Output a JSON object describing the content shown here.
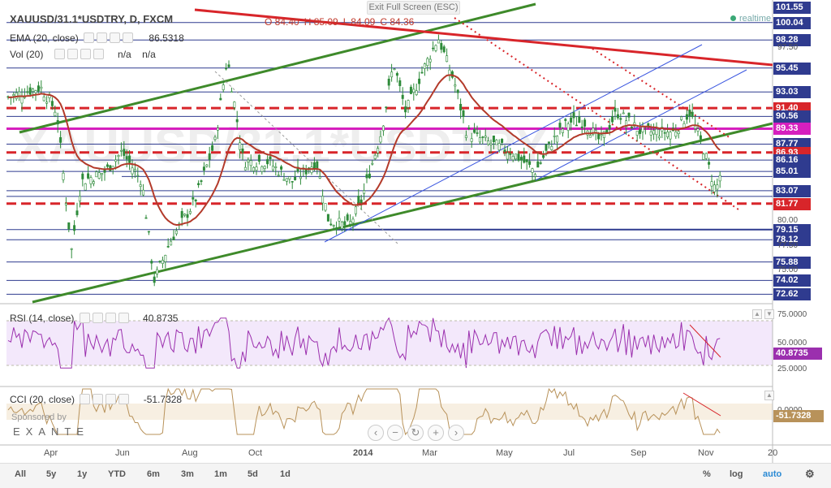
{
  "toolbar": {
    "exit_fullscreen": "Exit Full Screen (ESC)",
    "realtime": "realtime"
  },
  "main_pane": {
    "symbol": "XAUUSD/31.1*USDTRY, D, FXCM",
    "ohlc": {
      "o": "O 84.40",
      "h": "H 85.09",
      "l": "L 84.09",
      "c": "C 84.36"
    },
    "ema_label": "EMA (20, close)",
    "ema_value": "86.5318",
    "vol_label": "Vol (20)",
    "vol_value_1": "n/a",
    "vol_value_2": "n/a",
    "watermark": "XAUUSD/31.1*USDTRY"
  },
  "rsi_pane": {
    "label": "RSI (14, close)",
    "value": "40.8735"
  },
  "cci_pane": {
    "label": "CCI (20, close)",
    "value": "-51.7328",
    "sponsored": "Sponsored by",
    "sponsor_name": "EXANTE"
  },
  "price_tags": [
    {
      "text": "101.55",
      "color": "#2f3b8f",
      "y": 101.55
    },
    {
      "text": "100.04",
      "color": "#2f3b8f",
      "y": 100.04
    },
    {
      "text": "98.28",
      "color": "#2f3b8f",
      "y": 98.28
    },
    {
      "text": "95.45",
      "color": "#2f3b8f",
      "y": 95.45
    },
    {
      "text": "93.03",
      "color": "#2f3b8f",
      "y": 93.03
    },
    {
      "text": "91.40",
      "color": "#d8252a",
      "y": 91.4
    },
    {
      "text": "90.56",
      "color": "#2f3b8f",
      "y": 90.56
    },
    {
      "text": "89.33",
      "color": "#d61fbe",
      "y": 89.33
    },
    {
      "text": "87.77",
      "color": "#2f3b8f",
      "y": 87.77
    },
    {
      "text": "86.93",
      "color": "#d8252a",
      "y": 86.93
    },
    {
      "text": "86.16",
      "color": "#2f3b8f",
      "y": 86.16
    },
    {
      "text": "85.01",
      "color": "#2f3b8f",
      "y": 85.01
    },
    {
      "text": "83.07",
      "color": "#2f3b8f",
      "y": 83.07
    },
    {
      "text": "81.77",
      "color": "#d8252a",
      "y": 81.77
    },
    {
      "text": "79.15",
      "color": "#2f3b8f",
      "y": 79.15
    },
    {
      "text": "78.12",
      "color": "#2f3b8f",
      "y": 78.12
    },
    {
      "text": "75.88",
      "color": "#2f3b8f",
      "y": 75.88
    },
    {
      "text": "74.02",
      "color": "#2f3b8f",
      "y": 74.02
    },
    {
      "text": "72.62",
      "color": "#2f3b8f",
      "y": 72.62
    }
  ],
  "price_axis_ticks": [
    "97.50",
    "80.00",
    "77.50",
    "75.00"
  ],
  "rsi_axis_ticks": [
    "75.0000",
    "50.0000",
    "25.0000"
  ],
  "rsi_tag": "40.8735",
  "cci_tag": "-51.7328",
  "cci_axis_tick": "0.0000",
  "time_axis": [
    "Apr",
    "Jun",
    "Aug",
    "Oct",
    "2014",
    "Mar",
    "May",
    "Jul",
    "Sep",
    "Nov",
    "20"
  ],
  "range_buttons": [
    "All",
    "5y",
    "1y",
    "YTD",
    "6m",
    "3m",
    "1m",
    "5d",
    "1d"
  ],
  "bottom_right": [
    "%",
    "log",
    "auto"
  ],
  "colors": {
    "candle": "#2e8b3a",
    "ema": "#b33a2a",
    "trend_green": "#3e8a2a",
    "red_level": "#d8252a",
    "blue_level": "#2f3b8f",
    "magenta_level": "#d61fbe",
    "rsi": "#9b2fae",
    "cci": "#b8925a",
    "blue_channel": "#3a56e0"
  }
}
